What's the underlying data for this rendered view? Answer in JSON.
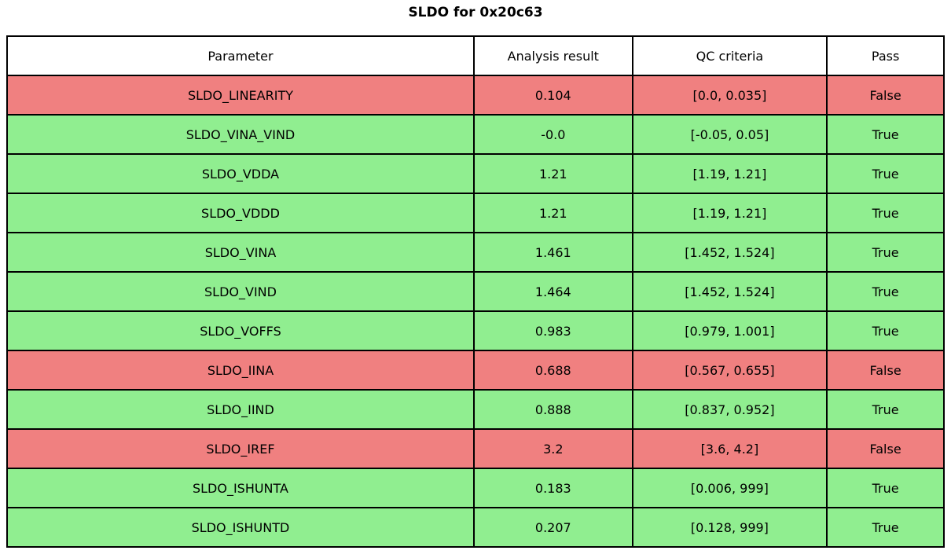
{
  "title": "SLDO for 0x20c63",
  "chart_data": {
    "type": "table",
    "title": "SLDO for 0x20c63",
    "columns": [
      "Parameter",
      "Analysis result",
      "QC criteria",
      "Pass"
    ],
    "rows": [
      {
        "parameter": "SLDO_LINEARITY",
        "analysis_result": "0.104",
        "qc_criteria": "[0.0, 0.035]",
        "pass": "False"
      },
      {
        "parameter": "SLDO_VINA_VIND",
        "analysis_result": "-0.0",
        "qc_criteria": "[-0.05, 0.05]",
        "pass": "True"
      },
      {
        "parameter": "SLDO_VDDA",
        "analysis_result": "1.21",
        "qc_criteria": "[1.19, 1.21]",
        "pass": "True"
      },
      {
        "parameter": "SLDO_VDDD",
        "analysis_result": "1.21",
        "qc_criteria": "[1.19, 1.21]",
        "pass": "True"
      },
      {
        "parameter": "SLDO_VINA",
        "analysis_result": "1.461",
        "qc_criteria": "[1.452, 1.524]",
        "pass": "True"
      },
      {
        "parameter": "SLDO_VIND",
        "analysis_result": "1.464",
        "qc_criteria": "[1.452, 1.524]",
        "pass": "True"
      },
      {
        "parameter": "SLDO_VOFFS",
        "analysis_result": "0.983",
        "qc_criteria": "[0.979, 1.001]",
        "pass": "True"
      },
      {
        "parameter": "SLDO_IINA",
        "analysis_result": "0.688",
        "qc_criteria": "[0.567, 0.655]",
        "pass": "False"
      },
      {
        "parameter": "SLDO_IIND",
        "analysis_result": "0.888",
        "qc_criteria": "[0.837, 0.952]",
        "pass": "True"
      },
      {
        "parameter": "SLDO_IREF",
        "analysis_result": "3.2",
        "qc_criteria": "[3.6, 4.2]",
        "pass": "False"
      },
      {
        "parameter": "SLDO_ISHUNTA",
        "analysis_result": "0.183",
        "qc_criteria": "[0.006, 999]",
        "pass": "True"
      },
      {
        "parameter": "SLDO_ISHUNTD",
        "analysis_result": "0.207",
        "qc_criteria": "[0.128, 999]",
        "pass": "True"
      }
    ]
  },
  "colors": {
    "pass_green": "#90ee90",
    "fail_red": "#f08080",
    "border": "#000000",
    "header_background": "#ffffff",
    "text": "#000000"
  }
}
